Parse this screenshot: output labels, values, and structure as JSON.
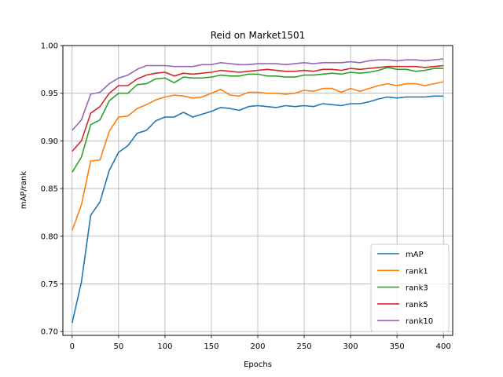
{
  "chart_data": {
    "type": "line",
    "title": "Reid on Market1501",
    "xlabel": "Epochs",
    "ylabel": "mAP/rank",
    "xlim": [
      -10,
      410
    ],
    "ylim": [
      0.696,
      1.0
    ],
    "xticks": [
      0,
      50,
      100,
      150,
      200,
      250,
      300,
      350,
      400
    ],
    "yticks": [
      0.7,
      0.75,
      0.8,
      0.85,
      0.9,
      0.95,
      1.0
    ],
    "grid": true,
    "legend_position": "lower-right",
    "x": [
      0,
      10,
      20,
      30,
      40,
      50,
      60,
      70,
      80,
      90,
      100,
      110,
      120,
      130,
      140,
      150,
      160,
      170,
      180,
      190,
      200,
      210,
      220,
      230,
      240,
      250,
      260,
      270,
      280,
      290,
      300,
      310,
      320,
      330,
      340,
      350,
      360,
      370,
      380,
      390,
      400
    ],
    "series": [
      {
        "name": "mAP",
        "color": "#1f77b4",
        "values": [
          0.709,
          0.752,
          0.822,
          0.836,
          0.869,
          0.888,
          0.895,
          0.908,
          0.911,
          0.921,
          0.925,
          0.925,
          0.93,
          0.925,
          0.928,
          0.931,
          0.935,
          0.934,
          0.932,
          0.936,
          0.937,
          0.936,
          0.935,
          0.937,
          0.936,
          0.937,
          0.936,
          0.939,
          0.938,
          0.937,
          0.939,
          0.939,
          0.941,
          0.944,
          0.946,
          0.945,
          0.946,
          0.946,
          0.946,
          0.947,
          0.947
        ]
      },
      {
        "name": "rank1",
        "color": "#ff7f0e",
        "values": [
          0.806,
          0.833,
          0.879,
          0.88,
          0.91,
          0.925,
          0.926,
          0.934,
          0.938,
          0.943,
          0.946,
          0.948,
          0.947,
          0.945,
          0.946,
          0.95,
          0.954,
          0.948,
          0.947,
          0.951,
          0.951,
          0.95,
          0.95,
          0.949,
          0.95,
          0.953,
          0.952,
          0.955,
          0.955,
          0.951,
          0.955,
          0.952,
          0.955,
          0.958,
          0.96,
          0.958,
          0.96,
          0.96,
          0.958,
          0.96,
          0.962
        ]
      },
      {
        "name": "rank3",
        "color": "#2ca02c",
        "values": [
          0.867,
          0.883,
          0.917,
          0.922,
          0.942,
          0.95,
          0.95,
          0.959,
          0.96,
          0.965,
          0.966,
          0.961,
          0.967,
          0.966,
          0.966,
          0.967,
          0.969,
          0.968,
          0.968,
          0.97,
          0.97,
          0.968,
          0.968,
          0.967,
          0.967,
          0.969,
          0.969,
          0.97,
          0.971,
          0.97,
          0.972,
          0.971,
          0.972,
          0.974,
          0.977,
          0.975,
          0.975,
          0.973,
          0.974,
          0.976,
          0.976
        ]
      },
      {
        "name": "rank5",
        "color": "#d62728",
        "values": [
          0.889,
          0.9,
          0.929,
          0.936,
          0.95,
          0.958,
          0.958,
          0.965,
          0.969,
          0.971,
          0.972,
          0.968,
          0.971,
          0.97,
          0.971,
          0.972,
          0.974,
          0.973,
          0.972,
          0.973,
          0.974,
          0.975,
          0.974,
          0.973,
          0.973,
          0.974,
          0.973,
          0.975,
          0.975,
          0.974,
          0.976,
          0.975,
          0.976,
          0.977,
          0.978,
          0.978,
          0.978,
          0.978,
          0.977,
          0.978,
          0.979
        ]
      },
      {
        "name": "rank10",
        "color": "#9467bd",
        "values": [
          0.911,
          0.922,
          0.949,
          0.951,
          0.96,
          0.966,
          0.969,
          0.975,
          0.979,
          0.979,
          0.979,
          0.978,
          0.978,
          0.978,
          0.98,
          0.98,
          0.982,
          0.981,
          0.98,
          0.98,
          0.981,
          0.981,
          0.981,
          0.98,
          0.981,
          0.982,
          0.981,
          0.982,
          0.982,
          0.982,
          0.983,
          0.982,
          0.984,
          0.985,
          0.985,
          0.984,
          0.985,
          0.985,
          0.984,
          0.985,
          0.986
        ]
      }
    ]
  }
}
